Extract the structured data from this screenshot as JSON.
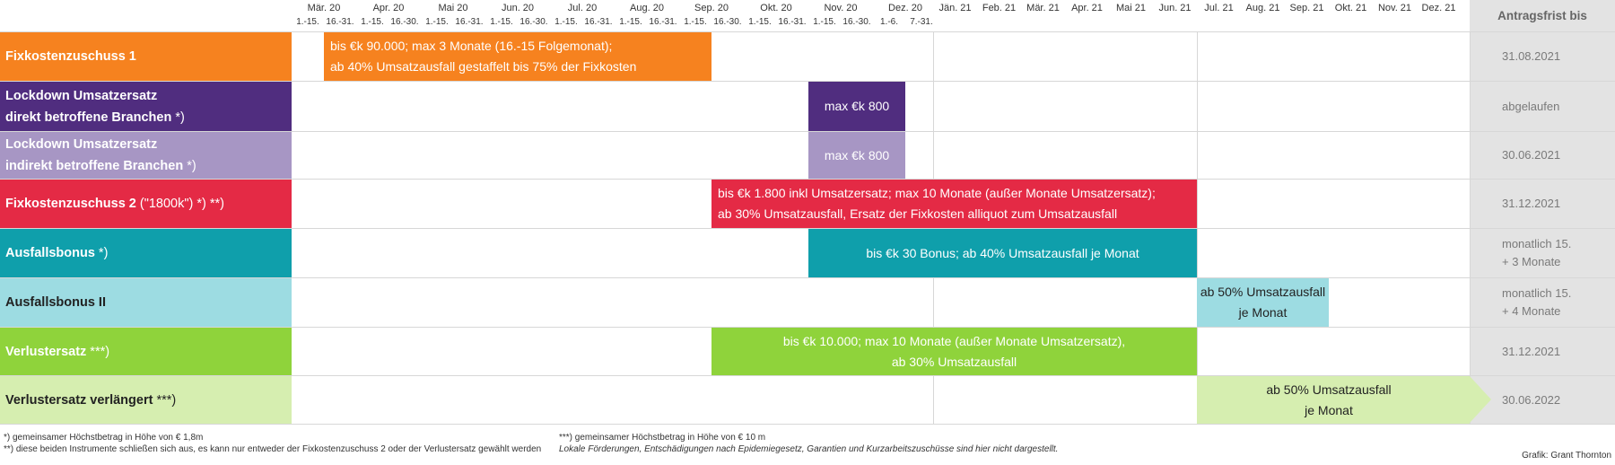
{
  "header": {
    "deadline_title": "Antragsfrist bis",
    "months_2020": [
      {
        "label": "Mär. 20",
        "halves": [
          "1.-15.",
          "16.-31."
        ]
      },
      {
        "label": "Apr. 20",
        "halves": [
          "1.-15.",
          "16.-30."
        ]
      },
      {
        "label": "Mai 20",
        "halves": [
          "1.-15.",
          "16.-31."
        ]
      },
      {
        "label": "Jun. 20",
        "halves": [
          "1.-15.",
          "16.-30."
        ]
      },
      {
        "label": "Jul. 20",
        "halves": [
          "1.-15.",
          "16.-31."
        ]
      },
      {
        "label": "Aug. 20",
        "halves": [
          "1.-15.",
          "16.-31."
        ]
      },
      {
        "label": "Sep. 20",
        "halves": [
          "1.-15.",
          "16.-30."
        ]
      },
      {
        "label": "Okt. 20",
        "halves": [
          "1.-15.",
          "16.-31."
        ]
      },
      {
        "label": "Nov. 20",
        "halves": [
          "1.-15.",
          "16.-30."
        ]
      },
      {
        "label": "Dez. 20",
        "halves": [
          "1.-6.",
          "7.-31."
        ]
      }
    ],
    "months_2021": [
      "Jän. 21",
      "Feb. 21",
      "Mär. 21",
      "Apr. 21",
      "Mai 21",
      "Jun. 21",
      "Jul. 21",
      "Aug. 21",
      "Sep. 21",
      "Okt. 21",
      "Nov. 21",
      "Dez. 21"
    ]
  },
  "chart_data": {
    "type": "gantt",
    "rows": [
      {
        "label": "Fixkostenzuschuss 1",
        "label_suffix": "",
        "color": "#f6821f",
        "bar_color": "#f6821f",
        "start": "2020-03-16",
        "end": "2020-09-15",
        "bar_text": [
          "bis €k 90.000;  max 3 Monate (16.-15 Folgemonat);",
          "ab 40% Umsatzausfall gestaffelt bis 75% der Fixkosten"
        ],
        "bar_align": "left",
        "deadline": [
          "31.08.2021"
        ]
      },
      {
        "label": "Lockdown Umsatzersatz\ndirekt betroffene Branchen",
        "label_suffix": "*)",
        "color": "#502d7f",
        "bar_color": "#502d7f",
        "start": "2020-11-01",
        "end": "2020-12-06",
        "bar_text": [
          "max €k 800"
        ],
        "bar_align": "center",
        "deadline": [
          "abgelaufen"
        ]
      },
      {
        "label": "Lockdown Umsatzersatz\nindirekt betroffene Branchen",
        "label_suffix": "*)",
        "color": "#a796c4",
        "bar_color": "#a796c4",
        "start": "2020-11-01",
        "end": "2020-12-06",
        "bar_text": [
          "max €k 800"
        ],
        "bar_align": "center",
        "deadline": [
          "30.06.2021"
        ]
      },
      {
        "label": "Fixkostenzuschuss 2",
        "label_suffix": "(\"1800k\") *) **)",
        "color": "#e42a45",
        "bar_color": "#e42a45",
        "start": "2020-09-16",
        "end": "2021-06-30",
        "bar_text": [
          "bis €k 1.800 inkl Umsatzersatz; max 10 Monate (außer Monate Umsatzersatz);",
          "ab 30% Umsatzausfall, Ersatz der Fixkosten alliquot zum Umsatzausfall"
        ],
        "bar_align": "left",
        "deadline": [
          "31.12.2021"
        ]
      },
      {
        "label": "Ausfallsbonus",
        "label_suffix": "*)",
        "color": "#0f9fab",
        "bar_color": "#0f9fab",
        "start": "2020-11-01",
        "end": "2021-06-30",
        "bar_text": [
          "bis €k 30 Bonus; ab 40% Umsatzausfall je Monat"
        ],
        "bar_align": "center",
        "deadline": [
          "monatlich 15.",
          "+ 3 Monate"
        ]
      },
      {
        "label": "Ausfallsbonus II",
        "label_suffix": "",
        "color": "#9ddce2",
        "label_dark": true,
        "bar_color": "#9ddce2",
        "start": "2021-07-01",
        "end": "2021-09-30",
        "bar_text": [
          "ab 50% Umsatzausfall",
          "je Monat"
        ],
        "bar_align": "center",
        "bar_dark": true,
        "deadline": [
          "monatlich 15.",
          "+ 4 Monate"
        ]
      },
      {
        "label": "Verlustersatz",
        "label_suffix": "***)",
        "color": "#8fd33b",
        "bar_color": "#8fd33b",
        "start": "2020-09-16",
        "end": "2021-06-30",
        "bar_text": [
          "bis €k 10.000; max 10 Monate (außer Monate Umsatzersatz),",
          "ab 30% Umsatzausfall"
        ],
        "bar_align": "center",
        "deadline": [
          "31.12.2021"
        ]
      },
      {
        "label": "Verlustersatz verlängert",
        "label_suffix": "***)",
        "color": "#d6eeb0",
        "label_dark": true,
        "bar_color": "#d6eeb0",
        "start": "2021-07-01",
        "end": "2021-12-31",
        "bar_text": [
          "ab 50% Umsatzausfall",
          "je Monat"
        ],
        "bar_align": "center",
        "bar_dark": true,
        "arrow": true,
        "deadline": [
          "30.06.2022"
        ]
      }
    ]
  },
  "footnotes": {
    "f1": "*) gemeinsamer Höchstbetrag in Höhe von € 1,8m",
    "f2": "**) diese beiden Instrumente schließen sich aus, es kann nur entweder der Fixkostenzuschuss 2 oder der Verlustersatz gewählt werden",
    "f3": "***) gemeinsamer Höchstbetrag in Höhe von € 10 m",
    "f4": "Lokale Förderungen, Entschädigungen nach Epidemiegesetz, Garantien und Kurzarbeitszuschüsse sind hier nicht dargestellt.",
    "credit": "Grafik: Grant Thornton"
  }
}
